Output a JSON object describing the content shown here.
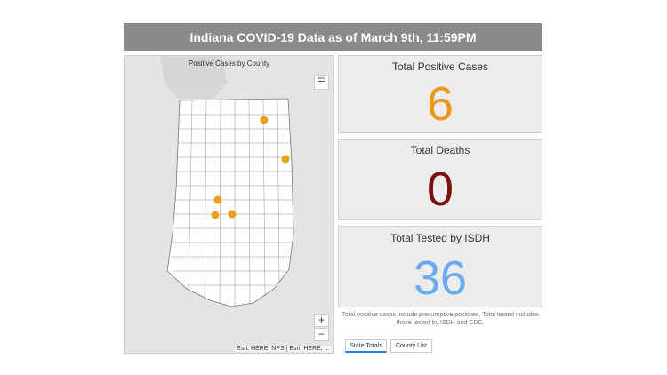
{
  "header": {
    "title": "Indiana COVID-19 Data as of March 9th, 11:59PM"
  },
  "map": {
    "title": "Positive Cases by County",
    "legend_icon": "legend-list-icon",
    "zoom_in_label": "+",
    "zoom_out_label": "−",
    "attribution": "Esri, HERE, NPS | Esri, HERE, ...",
    "colors": {
      "case_dot": "#e8a020",
      "county_fill": "#ffffff",
      "county_border": "#777777",
      "background": "#e4e4e4"
    }
  },
  "stats": {
    "positive": {
      "label": "Total Positive Cases",
      "value": "6",
      "color": "#e8961e"
    },
    "deaths": {
      "label": "Total Deaths",
      "value": "0",
      "color": "#7a1010"
    },
    "tested": {
      "label": "Total Tested by ISDH",
      "value": "36",
      "color": "#6aaaf0"
    }
  },
  "note": "Total positive cases include presumptive positives.  Total tested includes those tested by ISDH and CDC.",
  "tabs": [
    {
      "label": "State Totals",
      "active": true
    },
    {
      "label": "County List",
      "active": false
    }
  ]
}
